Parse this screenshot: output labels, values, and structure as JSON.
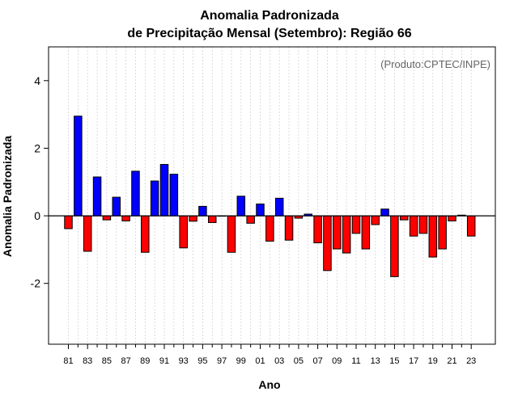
{
  "chart_data": {
    "type": "bar",
    "title_line1": "Anomalia Padronizada",
    "title_line2": "de Precipitação Mensal (Setembro): Região 66",
    "xlabel": "Ano",
    "ylabel": "Anomalia Padronizada",
    "annotation": "(Produto:CPTEC/INPE)",
    "ylim": [
      -3.8,
      5.0
    ],
    "yticks": [
      -2,
      0,
      2,
      4
    ],
    "ytick_labels": [
      "-2",
      "0",
      "2",
      "4"
    ],
    "xtick_labels": [
      "81",
      "83",
      "85",
      "87",
      "89",
      "91",
      "93",
      "95",
      "97",
      "99",
      "01",
      "03",
      "05",
      "07",
      "09",
      "11",
      "13",
      "15",
      "17",
      "19",
      "21",
      "23"
    ],
    "categories": [
      "1981",
      "1982",
      "1983",
      "1984",
      "1985",
      "1986",
      "1987",
      "1988",
      "1989",
      "1990",
      "1991",
      "1992",
      "1993",
      "1994",
      "1995",
      "1996",
      "1997",
      "1998",
      "1999",
      "2000",
      "2001",
      "2002",
      "2003",
      "2004",
      "2005",
      "2006",
      "2007",
      "2008",
      "2009",
      "2010",
      "2011",
      "2012",
      "2013",
      "2014",
      "2015",
      "2016",
      "2017",
      "2018",
      "2019",
      "2020",
      "2021",
      "2022",
      "2023"
    ],
    "values": [
      -0.38,
      2.95,
      -1.05,
      1.15,
      -0.12,
      0.55,
      -0.15,
      1.32,
      -1.08,
      1.03,
      1.52,
      1.23,
      -0.95,
      -0.16,
      0.28,
      -0.2,
      0.0,
      -1.08,
      0.58,
      -0.22,
      0.35,
      -0.75,
      0.52,
      -0.72,
      -0.07,
      0.05,
      -0.8,
      -1.62,
      -0.98,
      -1.1,
      -0.52,
      -0.98,
      -0.26,
      0.2,
      -1.8,
      -0.12,
      -0.6,
      -0.52,
      -1.22,
      -0.98,
      -0.15,
      0.02,
      -0.6
    ],
    "positive_color": "#0000ff",
    "negative_color": "#ff0000",
    "grid": "vertical dotted",
    "legend": "none"
  }
}
